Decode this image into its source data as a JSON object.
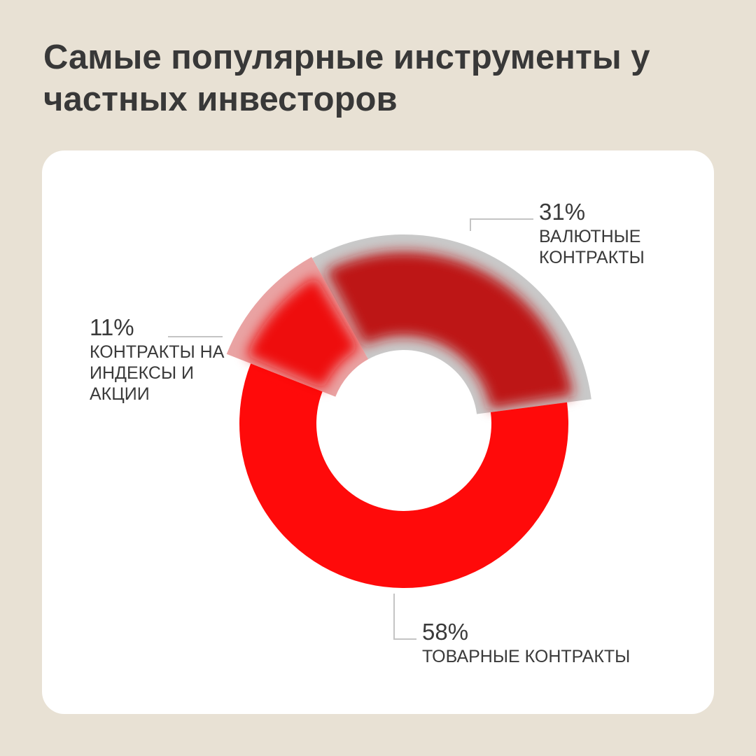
{
  "chart_data": {
    "type": "donut",
    "title": "Самые популярные инструменты у частных инвесторов",
    "categories": [
      "ВАЛЮТНЫЕ КОНТРАКТЫ",
      "ТОВАРНЫЕ КОНТРАКТЫ",
      "КОНТРАКТЫ НА ИНДЕКСЫ И АКЦИИ"
    ],
    "values": [
      31,
      58,
      11
    ],
    "value_labels": [
      "31%",
      "58%",
      "11%"
    ],
    "colors": [
      "#bd1414",
      "#ff0a0a",
      "#ee1111"
    ]
  }
}
